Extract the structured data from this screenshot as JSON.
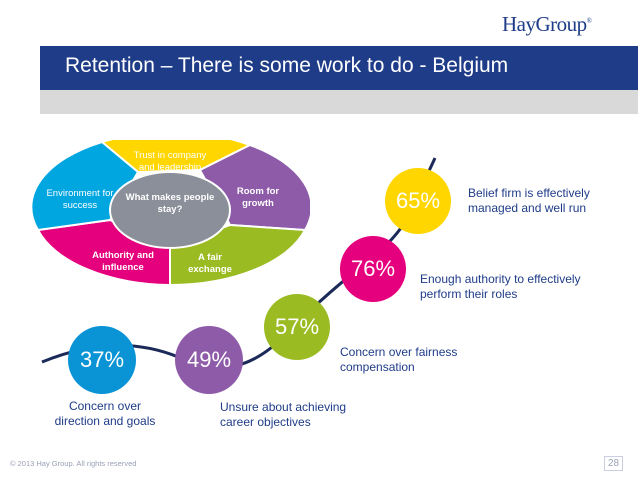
{
  "brand": {
    "logo": "HayGroup",
    "trademark": "®"
  },
  "slide": {
    "title": "Retention – There is some work to do - Belgium",
    "page_number": "28"
  },
  "footer": {
    "copyright": "© 2013 Hay Group. All rights reserved"
  },
  "wheel": {
    "center": "What makes people stay?",
    "segments": [
      {
        "label": "Trust in company and leadership",
        "color": "#ffd600"
      },
      {
        "label": "Room for growth",
        "color": "#8e5ba8"
      },
      {
        "label": "A fair exchange",
        "color": "#9bbb22"
      },
      {
        "label": "Authority and influence",
        "color": "#e5007d"
      },
      {
        "label": "Environment for success",
        "color": "#00a6e0"
      }
    ]
  },
  "steps": [
    {
      "value": "37%",
      "caption": "Concern over direction and goals",
      "color": "#0a94d6"
    },
    {
      "value": "49%",
      "caption": "Unsure about achieving career objectives",
      "color": "#8e5ba8"
    },
    {
      "value": "57%",
      "caption": "Concern over fairness compensation",
      "color": "#9bbb22"
    },
    {
      "value": "76%",
      "caption": "Enough authority to effectively perform their roles",
      "color": "#e5007d"
    },
    {
      "value": "65%",
      "caption": "Belief firm is effectively managed and well run",
      "color": "#ffd600"
    }
  ]
}
